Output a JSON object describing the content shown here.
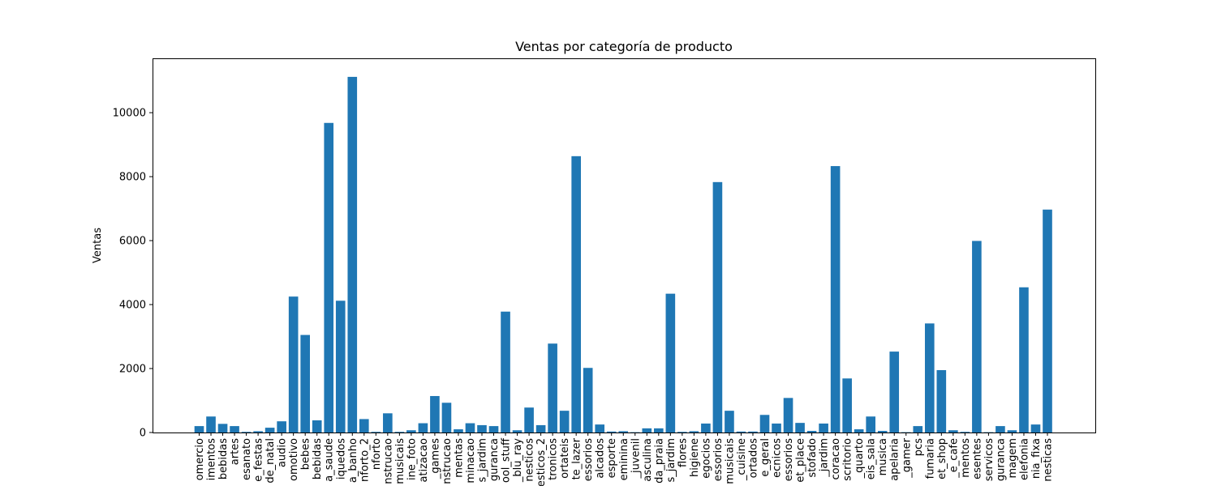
{
  "chart_data": {
    "type": "bar",
    "title": "Ventas por categoría de producto",
    "xlabel": "",
    "ylabel": "Ventas",
    "ylim": [
      0,
      11700
    ],
    "yticks": [
      0,
      2000,
      4000,
      6000,
      8000,
      10000
    ],
    "grid": false,
    "bar_color": "#1f77b4",
    "categories": [
      "omercio",
      "imentos",
      "bebidas",
      "artes",
      "esanato",
      "e_festas",
      "de_natal",
      "audio",
      "omotivo",
      "bebes",
      "bebidas",
      "a_saude",
      "iquedos",
      "a_banho",
      "nforto_2",
      "nforto",
      "nstrucao",
      "musicais",
      "ine_foto",
      "atizacao",
      "_games",
      "nstrucao",
      "mentas",
      "minacao",
      "s_jardim",
      "guranca",
      "ool_stuff",
      "_blu_ray",
      "nesticos",
      "esticos_2",
      "tronicos",
      "ortateis",
      "te_lazer",
      "essorios",
      "alcados",
      "esporte",
      "eminina",
      "_juvenil",
      "asculina",
      "da_praia",
      "s_jardim",
      "flores",
      "higiene",
      "egocios",
      "essorios",
      "musicais",
      "_cuisine",
      "ortados",
      "e_geral",
      "ecnicos",
      "essorios",
      "et_place",
      "stofado",
      "_jardim",
      "coracao",
      "scritorio",
      "_quarto",
      "eis_sala",
      "musica",
      "apelaria",
      "_gamer",
      "pcs",
      "fumaria",
      "et_shop",
      "_e_cafe",
      "mentos",
      "esentes",
      "servicos",
      "guranca",
      "magem",
      "elefonia",
      "nia_fixa",
      "nesticas"
    ],
    "values": [
      200,
      500,
      270,
      200,
      20,
      40,
      150,
      350,
      4250,
      3050,
      380,
      9680,
      4120,
      11120,
      420,
      20,
      600,
      20,
      70,
      290,
      1140,
      930,
      100,
      290,
      230,
      200,
      3780,
      70,
      780,
      230,
      2780,
      680,
      8640,
      2020,
      250,
      30,
      40,
      10,
      130,
      130,
      4340,
      20,
      40,
      280,
      7830,
      680,
      30,
      30,
      550,
      280,
      1080,
      300,
      50,
      280,
      8330,
      1690,
      100,
      500,
      50,
      2530,
      10,
      200,
      3410,
      1950,
      70,
      20,
      5990,
      10,
      200,
      70,
      4540,
      250,
      6970
    ]
  }
}
